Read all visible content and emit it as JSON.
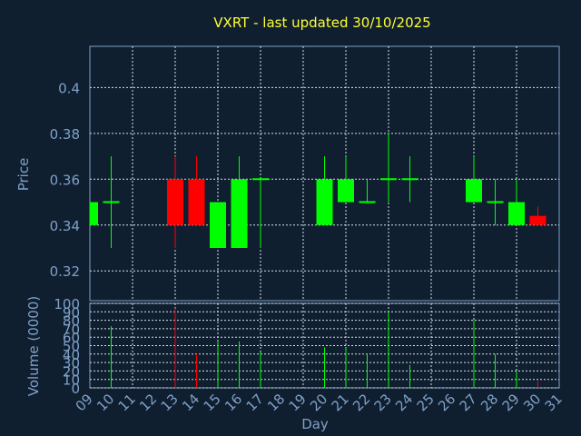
{
  "chart_data": {
    "type": "candlestick",
    "title": "VXRT - last updated 30/10/2025",
    "xlabel": "Day",
    "x_ticks": [
      "09",
      "10",
      "11",
      "12",
      "13",
      "14",
      "15",
      "16",
      "17",
      "18",
      "19",
      "20",
      "21",
      "22",
      "23",
      "24",
      "25",
      "26",
      "27",
      "28",
      "29",
      "30",
      "31"
    ],
    "price_panel": {
      "ylabel": "Price",
      "ylim": [
        0.307,
        0.418
      ],
      "y_ticks": [
        "0.32",
        "0.34",
        "0.36",
        "0.38",
        "0.4"
      ],
      "grid": true
    },
    "volume_panel": {
      "ylabel": "Volume (0000)",
      "ylim": [
        0,
        100
      ],
      "y_ticks": [
        "0",
        "10",
        "20",
        "30",
        "40",
        "50",
        "60",
        "70",
        "80",
        "90",
        "100"
      ],
      "grid": true
    },
    "colors": {
      "up": "#00ff00",
      "down": "#ff0000",
      "title": "#ffff33",
      "axis": "#7fa0c8",
      "background": "#0f1f30"
    },
    "candles": [
      {
        "day": "09",
        "open": 0.34,
        "high": 0.35,
        "low": 0.34,
        "close": 0.35,
        "volume": 0
      },
      {
        "day": "10",
        "open": 0.35,
        "high": 0.37,
        "low": 0.33,
        "close": 0.35,
        "volume": 73
      },
      {
        "day": "13",
        "open": 0.36,
        "high": 0.37,
        "low": 0.33,
        "close": 0.34,
        "volume": 94
      },
      {
        "day": "14",
        "open": 0.36,
        "high": 0.37,
        "low": 0.34,
        "close": 0.34,
        "volume": 40
      },
      {
        "day": "15",
        "open": 0.33,
        "high": 0.35,
        "low": 0.33,
        "close": 0.35,
        "volume": 55
      },
      {
        "day": "16",
        "open": 0.33,
        "high": 0.37,
        "low": 0.33,
        "close": 0.36,
        "volume": 55
      },
      {
        "day": "17",
        "open": 0.36,
        "high": 0.36,
        "low": 0.33,
        "close": 0.36,
        "volume": 42
      },
      {
        "day": "20",
        "open": 0.34,
        "high": 0.37,
        "low": 0.34,
        "close": 0.36,
        "volume": 48
      },
      {
        "day": "21",
        "open": 0.35,
        "high": 0.37,
        "low": 0.35,
        "close": 0.36,
        "volume": 47
      },
      {
        "day": "22",
        "open": 0.35,
        "high": 0.36,
        "low": 0.35,
        "close": 0.35,
        "volume": 40
      },
      {
        "day": "23",
        "open": 0.36,
        "high": 0.38,
        "low": 0.35,
        "close": 0.36,
        "volume": 90
      },
      {
        "day": "24",
        "open": 0.36,
        "high": 0.37,
        "low": 0.35,
        "close": 0.36,
        "volume": 27
      },
      {
        "day": "27",
        "open": 0.35,
        "high": 0.37,
        "low": 0.35,
        "close": 0.36,
        "volume": 80
      },
      {
        "day": "28",
        "open": 0.35,
        "high": 0.36,
        "low": 0.34,
        "close": 0.35,
        "volume": 40
      },
      {
        "day": "29",
        "open": 0.34,
        "high": 0.36,
        "low": 0.34,
        "close": 0.35,
        "volume": 20
      },
      {
        "day": "30",
        "open": 0.344,
        "high": 0.348,
        "low": 0.34,
        "close": 0.34,
        "volume": 8
      }
    ]
  }
}
